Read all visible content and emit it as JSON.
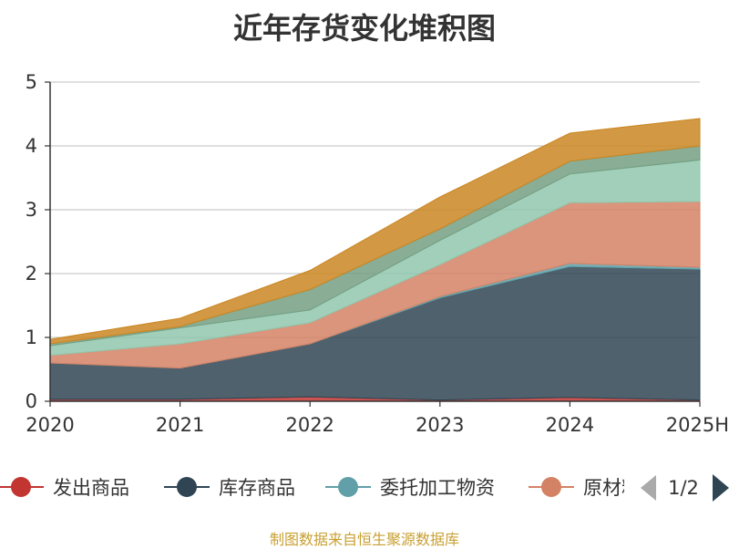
{
  "chart_data": {
    "type": "area",
    "stacked": true,
    "title": "近年存货变化堆积图",
    "x": [
      "2020",
      "2021",
      "2022",
      "2023",
      "2024",
      "2025H"
    ],
    "ylim": [
      0,
      5
    ],
    "yticks": [
      0,
      1,
      2,
      3,
      4,
      5
    ],
    "grid": true,
    "series": [
      {
        "name": "发出商品",
        "color": "#c23531",
        "values": [
          0.03,
          0.03,
          0.07,
          0.02,
          0.06,
          0.02
        ]
      },
      {
        "name": "库存商品",
        "color": "#2f4554",
        "values": [
          0.57,
          0.49,
          0.83,
          1.6,
          2.05,
          2.05
        ]
      },
      {
        "name": "委托加工物资",
        "color": "#61a0a8",
        "values": [
          0.0,
          0.0,
          0.0,
          0.02,
          0.05,
          0.03
        ]
      },
      {
        "name": "原材料",
        "color": "#d48265",
        "values": [
          0.12,
          0.38,
          0.33,
          0.5,
          0.95,
          1.03
        ]
      },
      {
        "name": "",
        "color": "#91c7ae",
        "values": [
          0.15,
          0.25,
          0.2,
          0.38,
          0.45,
          0.65
        ]
      },
      {
        "name": "",
        "color": "#749f83",
        "values": [
          0.03,
          0.02,
          0.32,
          0.18,
          0.2,
          0.22
        ]
      },
      {
        "name": "",
        "color": "#ca8622",
        "values": [
          0.07,
          0.13,
          0.3,
          0.5,
          0.44,
          0.43
        ]
      }
    ],
    "legend": {
      "position": "bottom",
      "visible_items": [
        "发出商品",
        "库存商品",
        "委托加工物资",
        "原材料"
      ],
      "page": "1/2"
    }
  },
  "source_note": "制图数据来自恒生聚源数据库"
}
